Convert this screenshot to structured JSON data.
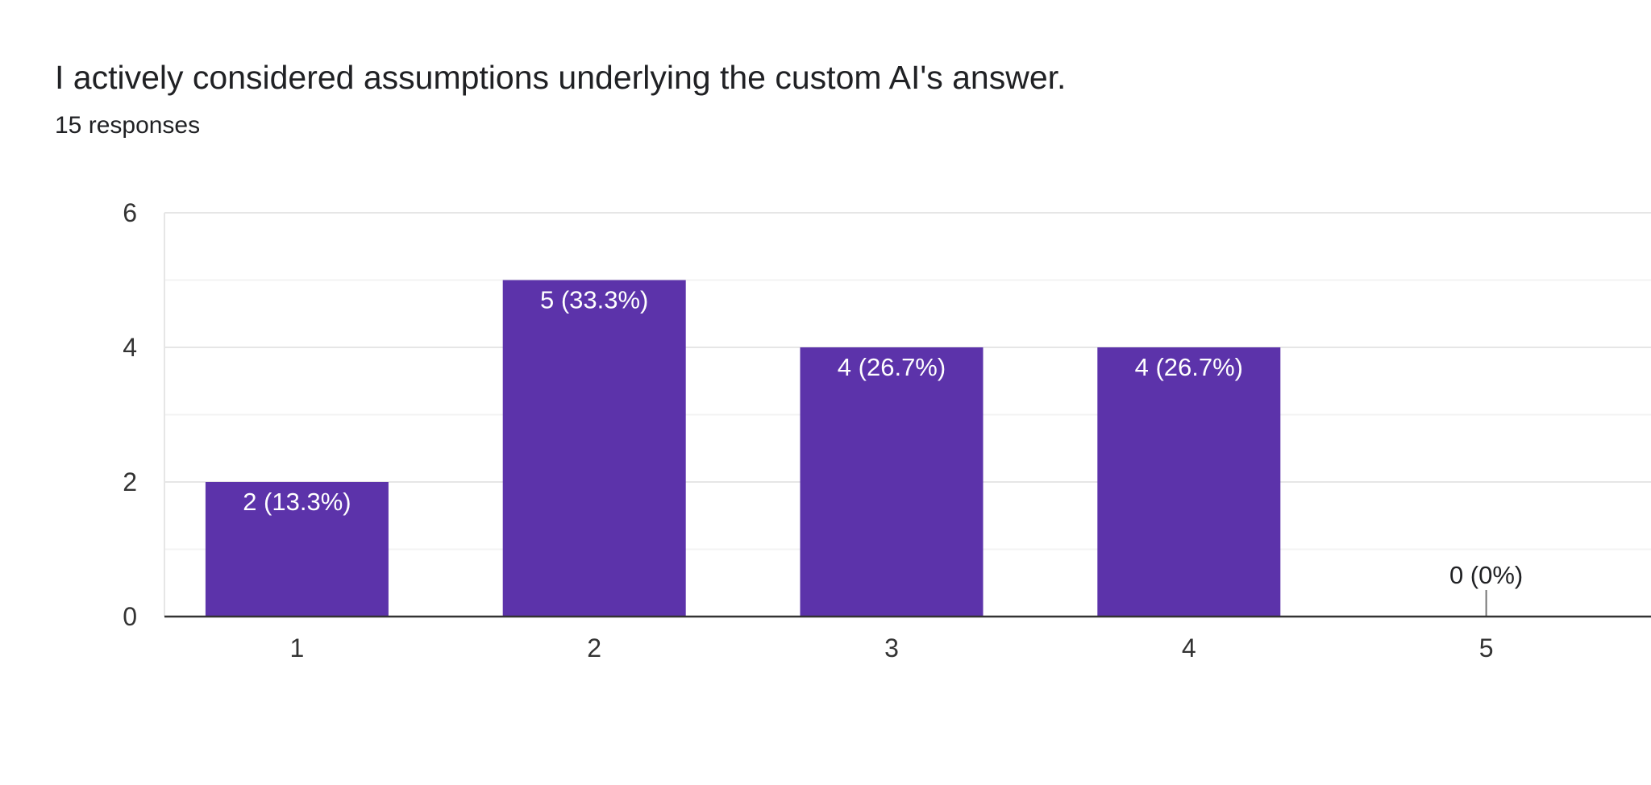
{
  "header": {
    "title": "I actively considered assumptions underlying the custom AI's answer.",
    "responses": "15 responses"
  },
  "colors": {
    "bar": "#5c33aa",
    "label_inside": "#ffffff",
    "label_outside": "#202124"
  },
  "chart_data": {
    "type": "bar",
    "categories": [
      "1",
      "2",
      "3",
      "4",
      "5"
    ],
    "values": [
      2,
      5,
      4,
      4,
      0
    ],
    "data_labels": [
      "2 (13.3%)",
      "5 (33.3%)",
      "4 (26.7%)",
      "4 (26.7%)",
      "0 (0%)"
    ],
    "y_ticks": [
      0,
      2,
      4,
      6
    ],
    "ylim": [
      0,
      6
    ],
    "grid": true,
    "title": "",
    "xlabel": "",
    "ylabel": ""
  }
}
